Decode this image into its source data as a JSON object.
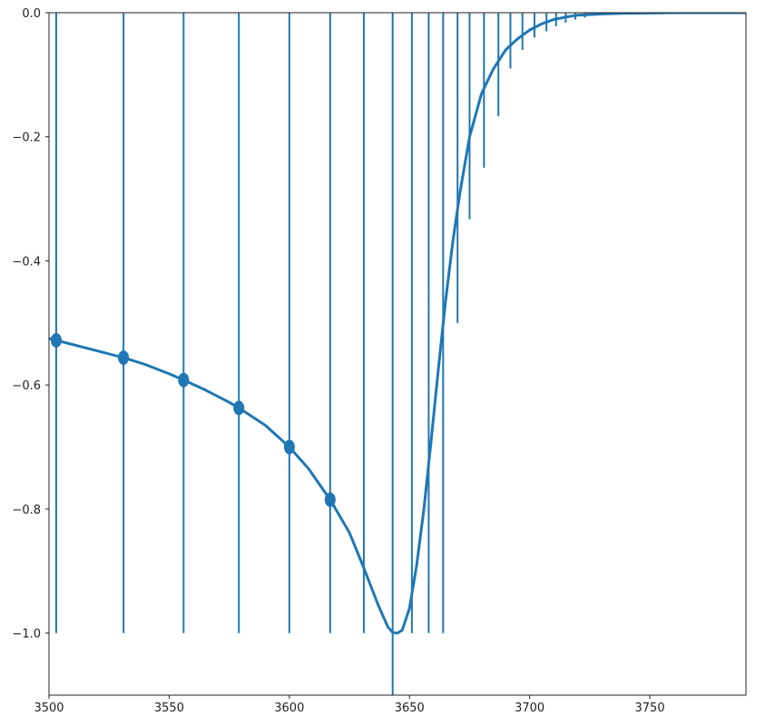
{
  "chart_data": {
    "type": "line",
    "title": "",
    "xlabel": "",
    "ylabel": "",
    "xlim": [
      3500,
      3790
    ],
    "ylim": [
      -1.1,
      0.0
    ],
    "grid": false,
    "colors": {
      "line": "#1f77b4",
      "axis": "#222222"
    },
    "x_ticks": [
      3500,
      3550,
      3600,
      3650,
      3700,
      3750
    ],
    "x_tick_labels": [
      "3500",
      "3550",
      "3600",
      "3650",
      "3700",
      "3750"
    ],
    "y_ticks": [
      0.0,
      -0.2,
      -0.4,
      -0.6,
      -0.8,
      -1.0
    ],
    "y_tick_labels": [
      "0.0",
      "−0.2",
      "−0.4",
      "−0.6",
      "−0.8",
      "−1.0"
    ],
    "series": [
      {
        "kind": "curve",
        "x": [
          3500,
          3503,
          3510,
          3520,
          3531,
          3540,
          3550,
          3556,
          3565,
          3575,
          3579,
          3590,
          3600,
          3608,
          3617,
          3625,
          3631,
          3637,
          3641,
          3643,
          3645,
          3647,
          3650,
          3653,
          3656,
          3659,
          3662,
          3665,
          3668,
          3671,
          3675,
          3680,
          3685,
          3690,
          3695,
          3700,
          3705,
          3710,
          3715,
          3720,
          3730,
          3740,
          3750,
          3760,
          3770,
          3780,
          3790
        ],
        "y": [
          -0.525,
          -0.528,
          -0.535,
          -0.545,
          -0.556,
          -0.567,
          -0.582,
          -0.592,
          -0.608,
          -0.628,
          -0.637,
          -0.665,
          -0.7,
          -0.735,
          -0.785,
          -0.838,
          -0.895,
          -0.955,
          -0.99,
          -0.999,
          -1.0,
          -0.995,
          -0.96,
          -0.89,
          -0.8,
          -0.69,
          -0.575,
          -0.465,
          -0.37,
          -0.29,
          -0.2,
          -0.13,
          -0.09,
          -0.06,
          -0.042,
          -0.028,
          -0.018,
          -0.011,
          -0.007,
          -0.004,
          -0.002,
          -0.001,
          -0.0005,
          0,
          0,
          0,
          0
        ]
      },
      {
        "kind": "vertical-lines",
        "segments": [
          {
            "x": 3503,
            "y0": 0.0,
            "y1": -1.0
          },
          {
            "x": 3531,
            "y0": 0.0,
            "y1": -1.0
          },
          {
            "x": 3556,
            "y0": 0.0,
            "y1": -1.0
          },
          {
            "x": 3579,
            "y0": 0.0,
            "y1": -1.0
          },
          {
            "x": 3600,
            "y0": 0.0,
            "y1": -1.0
          },
          {
            "x": 3617,
            "y0": 0.0,
            "y1": -1.0
          },
          {
            "x": 3631,
            "y0": 0.0,
            "y1": -1.0
          },
          {
            "x": 3643,
            "y0": 0.0,
            "y1": -1.1
          },
          {
            "x": 3651,
            "y0": 0.0,
            "y1": -1.0
          },
          {
            "x": 3658,
            "y0": 0.0,
            "y1": -1.0
          },
          {
            "x": 3664,
            "y0": 0.0,
            "y1": -1.0
          },
          {
            "x": 3670,
            "y0": 0.0,
            "y1": -0.5
          },
          {
            "x": 3675,
            "y0": 0.0,
            "y1": -0.333
          },
          {
            "x": 3681,
            "y0": 0.0,
            "y1": -0.25
          },
          {
            "x": 3687,
            "y0": 0.0,
            "y1": -0.167
          },
          {
            "x": 3692,
            "y0": 0.0,
            "y1": -0.09
          },
          {
            "x": 3697,
            "y0": 0.0,
            "y1": -0.06
          },
          {
            "x": 3702,
            "y0": 0.0,
            "y1": -0.04
          },
          {
            "x": 3707,
            "y0": 0.0,
            "y1": -0.03
          },
          {
            "x": 3711,
            "y0": 0.0,
            "y1": -0.022
          },
          {
            "x": 3715,
            "y0": 0.0,
            "y1": -0.016
          },
          {
            "x": 3719,
            "y0": 0.0,
            "y1": -0.011
          },
          {
            "x": 3723,
            "y0": 0.0,
            "y1": -0.008
          },
          {
            "x": 3727,
            "y0": 0.0,
            "y1": -0.005
          }
        ]
      },
      {
        "kind": "markers",
        "points": [
          {
            "x": 3503,
            "y": -0.528
          },
          {
            "x": 3531,
            "y": -0.556
          },
          {
            "x": 3556,
            "y": -0.592
          },
          {
            "x": 3579,
            "y": -0.637
          },
          {
            "x": 3600,
            "y": -0.7
          },
          {
            "x": 3617,
            "y": -0.785
          }
        ]
      }
    ]
  }
}
